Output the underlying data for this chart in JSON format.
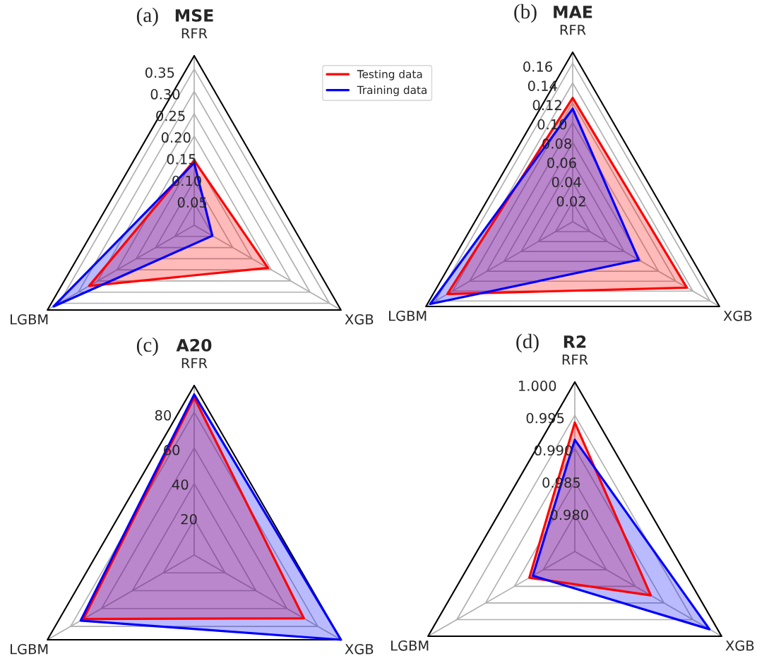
{
  "chart_data": [
    {
      "type": "radar",
      "title": "MSE",
      "annotations": [
        "(a)"
      ],
      "categories": [
        "RFR",
        "XGB",
        "LGBM"
      ],
      "ylim": [
        0,
        0.38
      ],
      "yticks": [
        0.05,
        {
          "value": 0.1,
          "label": "0.10"
        },
        0.15,
        {
          "value": 0.2,
          "label": "0.20"
        },
        0.25,
        {
          "value": 0.3,
          "label": "0.30"
        },
        0.35
      ],
      "legend": "top right",
      "line_style": "solid",
      "marker": "none",
      "grid": true,
      "series": [
        {
          "name": "Testing data",
          "color": "#ff0000",
          "values": [
            0.145,
            0.191,
            0.272
          ]
        },
        {
          "name": "Training data",
          "color": "#0000ff",
          "values": [
            0.14,
            0.047,
            0.364
          ]
        }
      ]
    },
    {
      "type": "radar",
      "title": "MAE",
      "annotations": [
        "(b)"
      ],
      "categories": [
        "RFR",
        "XGB",
        "LGBM"
      ],
      "ylim": [
        0,
        0.171
      ],
      "yticks": [
        0.02,
        0.04,
        0.06,
        0.08,
        {
          "value": 0.1,
          "label": "0.10"
        },
        0.12,
        0.14,
        0.16
      ],
      "line_style": "solid",
      "marker": "none",
      "grid": true,
      "series": [
        {
          "color": "#ff0000",
          "values": [
            0.125,
            0.133,
            0.146
          ]
        },
        {
          "color": "#0000ff",
          "values": [
            0.114,
            0.077,
            0.166
          ]
        }
      ]
    },
    {
      "type": "radar",
      "title": "A20",
      "annotations": [
        "(c)"
      ],
      "categories": [
        "RFR",
        "XGB",
        "LGBM"
      ],
      "ylim": [
        0,
        95
      ],
      "yticks": [
        20,
        40,
        60,
        80
      ],
      "line_style": "solid",
      "marker": "none",
      "grid": true,
      "series": [
        {
          "color": "#ff0000",
          "values": [
            88.3,
            71,
            71.7
          ]
        },
        {
          "color": "#0000ff",
          "values": [
            90,
            95,
            73.5
          ]
        }
      ]
    },
    {
      "type": "radar",
      "title": "R2",
      "annotations": [
        "(d)"
      ],
      "categories": [
        "RFR",
        "XGB",
        "LGBM"
      ],
      "ylim": [
        0.9745,
        1.0
      ],
      "yticks": [
        {
          "value": 0.98,
          "label": "0.980"
        },
        {
          "value": 0.985,
          "label": "0.985"
        },
        {
          "value": 0.99,
          "label": "0.990"
        },
        {
          "value": 0.995,
          "label": "0.995"
        },
        {
          "value": 1.0,
          "label": "1.000"
        }
      ],
      "line_style": "solid",
      "marker": "none",
      "grid": true,
      "series": [
        {
          "color": "#ff0000",
          "values": [
            0.9939,
            0.9877,
            0.9824
          ]
        },
        {
          "color": "#0000ff",
          "values": [
            0.9913,
            0.9979,
            0.9818
          ]
        }
      ]
    }
  ]
}
